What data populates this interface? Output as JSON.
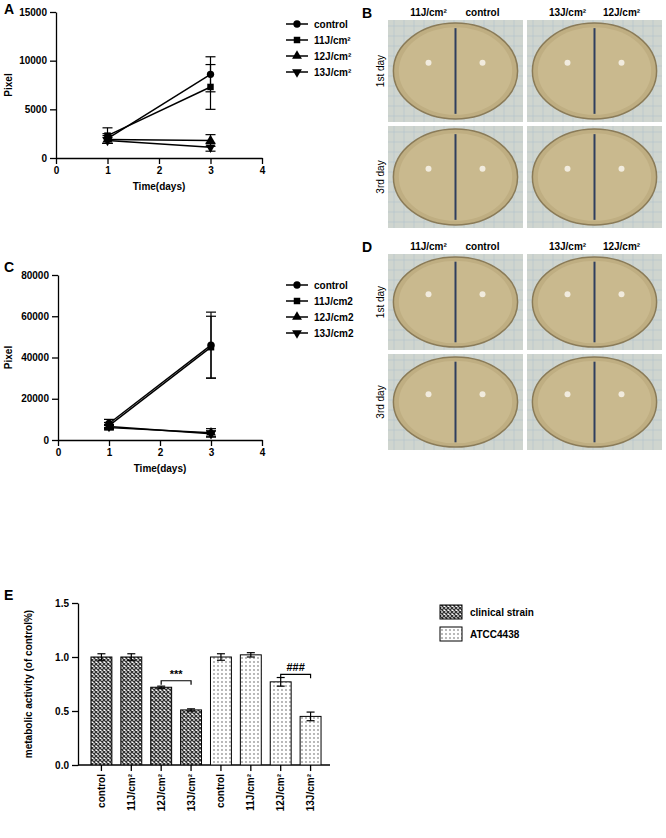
{
  "chart_data": [
    {
      "type": "line",
      "panel": "A",
      "x_label": "Time(days)",
      "y_label": "Pixel",
      "x": [
        1,
        3
      ],
      "xlim": [
        0,
        4
      ],
      "xticks": [
        0,
        1,
        2,
        3,
        4
      ],
      "ylim": [
        0,
        15000
      ],
      "yticks": [
        0,
        5000,
        10000,
        15000
      ],
      "legend": "right",
      "series": [
        {
          "name": "control",
          "color": "#000000",
          "marker": "circle",
          "values": [
            2000,
            8600
          ],
          "errors": [
            500,
            1800
          ]
        },
        {
          "name": "11J/cm²",
          "color": "#000000",
          "marker": "square",
          "values": [
            2300,
            7300
          ],
          "errors": [
            800,
            2300
          ]
        },
        {
          "name": "12J/cm²",
          "color": "#000000",
          "marker": "triangle-up",
          "values": [
            1900,
            1800
          ],
          "errors": [
            400,
            600
          ]
        },
        {
          "name": "13J/cm²",
          "color": "#000000",
          "marker": "triangle-down",
          "values": [
            1800,
            1100
          ],
          "errors": [
            300,
            400
          ]
        }
      ]
    },
    {
      "type": "line",
      "panel": "C",
      "x_label": "Time(days)",
      "y_label": "Pixel",
      "x": [
        1,
        3
      ],
      "xlim": [
        0,
        4
      ],
      "xticks": [
        0,
        1,
        2,
        3,
        4
      ],
      "ylim": [
        0,
        80000
      ],
      "yticks": [
        0,
        20000,
        40000,
        60000,
        80000
      ],
      "legend": "right",
      "series": [
        {
          "name": "control",
          "color": "#000000",
          "marker": "circle",
          "values": [
            8000,
            46000
          ],
          "errors": [
            2000,
            16000
          ]
        },
        {
          "name": "11J/cm2",
          "color": "#000000",
          "marker": "square",
          "values": [
            7000,
            45000
          ],
          "errors": [
            1500,
            15000
          ]
        },
        {
          "name": "12J/cm2",
          "color": "#000000",
          "marker": "triangle-up",
          "values": [
            6000,
            3500
          ],
          "errors": [
            1000,
            2000
          ]
        },
        {
          "name": "13J/cm2",
          "color": "#000000",
          "marker": "triangle-down",
          "values": [
            6500,
            3000
          ],
          "errors": [
            1000,
            1500
          ]
        }
      ]
    },
    {
      "type": "bar",
      "panel": "E",
      "y_label": "metabolic activity (of control%)",
      "categories": [
        "control",
        "11J/cm²",
        "12J/cm²",
        "13J/cm²",
        "control",
        "11J/cm²",
        "12J/cm²",
        "13J/cm²"
      ],
      "ylim": [
        0,
        1.5
      ],
      "yticks": [
        {
          "value": 0,
          "label": "0.0"
        },
        0.5,
        {
          "value": 1,
          "label": "1.0"
        },
        1.5
      ],
      "legend": "right",
      "series": [
        {
          "name": "clinical strain",
          "color": "#333333",
          "values": [
            1.0,
            1.0,
            0.72,
            0.51,
            null,
            null,
            null,
            null
          ],
          "errors": [
            0.03,
            0.03,
            0.01,
            0.01,
            null,
            null,
            null,
            null
          ]
        },
        {
          "name": "ATCC4438",
          "color": "#999999",
          "values": [
            null,
            null,
            null,
            null,
            1.0,
            1.02,
            0.77,
            0.45
          ],
          "errors": [
            null,
            null,
            null,
            null,
            0.03,
            0.02,
            0.04,
            0.04
          ]
        }
      ],
      "annotations": [
        {
          "text": "***",
          "categories": [
            2,
            3
          ],
          "y": 0.78
        },
        {
          "text": "###",
          "categories": [
            6,
            7
          ],
          "y": 0.84
        }
      ]
    }
  ],
  "photos": [
    {
      "panel": "B",
      "columns": [
        "11J/cm²",
        "control",
        "13J/cm²",
        "12J/cm²"
      ],
      "rows": [
        "1st day",
        "3rd day"
      ]
    },
    {
      "panel": "D",
      "columns": [
        "11J/cm²",
        "control",
        "13J/cm²",
        "12J/cm²"
      ],
      "rows": [
        "1st day",
        "3rd day"
      ]
    }
  ]
}
